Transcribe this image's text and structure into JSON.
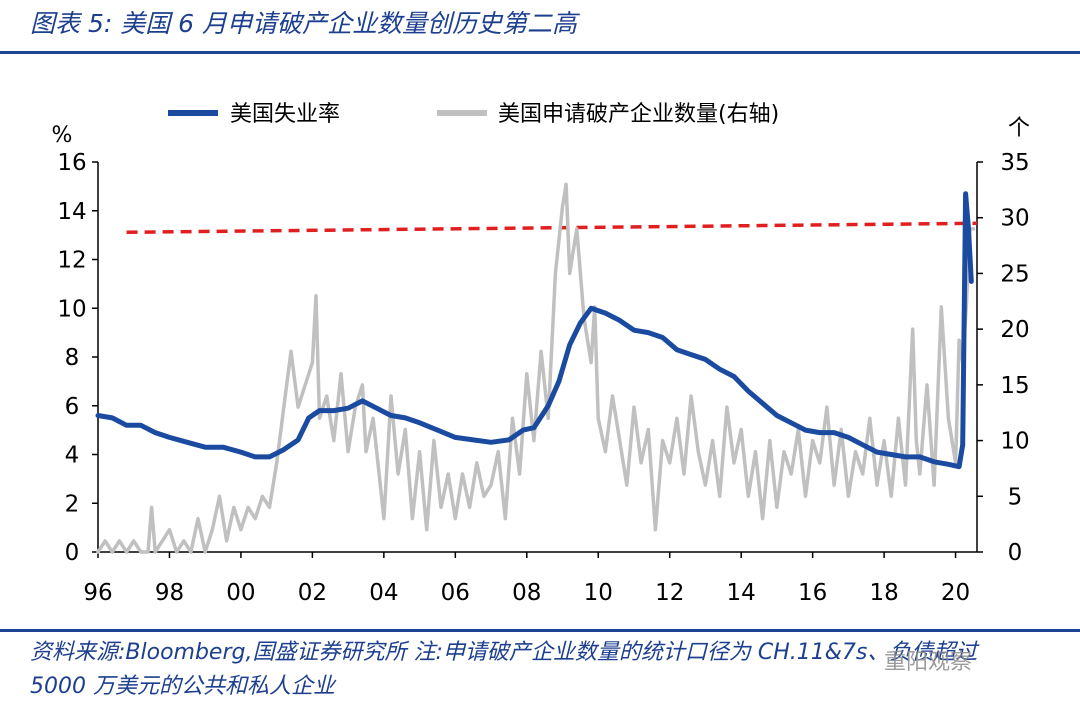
{
  "header": {
    "title": "图表 5:  美国 6 月申请破产企业数量创历史第二高"
  },
  "footer": {
    "source": "资料来源:Bloomberg,国盛证券研究所   注:申请破产企业数量的统计口径为 CH.11&7s、负债超过 5000 万美元的公共和私人企业",
    "watermark": "重阳观察"
  },
  "chart_data": {
    "type": "line",
    "left_unit": "%",
    "right_unit": "个",
    "left_ylim": [
      0,
      16
    ],
    "right_ylim": [
      0,
      35
    ],
    "left_ticks": [
      "0",
      "2",
      "4",
      "6",
      "8",
      "10",
      "12",
      "14",
      "16"
    ],
    "right_ticks": [
      "0",
      "5",
      "10",
      "15",
      "20",
      "25",
      "30",
      "35"
    ],
    "x_ticks": [
      "96",
      "98",
      "00",
      "02",
      "04",
      "06",
      "08",
      "10",
      "12",
      "14",
      "16",
      "18",
      "20"
    ],
    "x_range": [
      1996.0,
      2020.6
    ],
    "reference_line": {
      "axis": "right",
      "value": 29.5,
      "color": "#e02020"
    },
    "legend_position": "top",
    "series": [
      {
        "name": "美国失业率",
        "axis": "left",
        "color": "#1a4ba0",
        "points": [
          [
            1996.0,
            5.6
          ],
          [
            1996.4,
            5.5
          ],
          [
            1996.8,
            5.2
          ],
          [
            1997.2,
            5.2
          ],
          [
            1997.6,
            4.9
          ],
          [
            1998.0,
            4.7
          ],
          [
            1998.5,
            4.5
          ],
          [
            1999.0,
            4.3
          ],
          [
            1999.5,
            4.3
          ],
          [
            2000.0,
            4.1
          ],
          [
            2000.4,
            3.9
          ],
          [
            2000.8,
            3.9
          ],
          [
            2001.2,
            4.2
          ],
          [
            2001.6,
            4.6
          ],
          [
            2001.9,
            5.5
          ],
          [
            2002.2,
            5.8
          ],
          [
            2002.6,
            5.8
          ],
          [
            2003.0,
            5.9
          ],
          [
            2003.4,
            6.2
          ],
          [
            2003.8,
            5.9
          ],
          [
            2004.2,
            5.6
          ],
          [
            2004.6,
            5.5
          ],
          [
            2005.0,
            5.3
          ],
          [
            2005.5,
            5.0
          ],
          [
            2006.0,
            4.7
          ],
          [
            2006.5,
            4.6
          ],
          [
            2007.0,
            4.5
          ],
          [
            2007.5,
            4.6
          ],
          [
            2007.9,
            5.0
          ],
          [
            2008.2,
            5.1
          ],
          [
            2008.6,
            6.0
          ],
          [
            2008.9,
            7.0
          ],
          [
            2009.2,
            8.5
          ],
          [
            2009.5,
            9.4
          ],
          [
            2009.8,
            10.0
          ],
          [
            2010.2,
            9.8
          ],
          [
            2010.6,
            9.5
          ],
          [
            2011.0,
            9.1
          ],
          [
            2011.4,
            9.0
          ],
          [
            2011.8,
            8.8
          ],
          [
            2012.2,
            8.3
          ],
          [
            2012.6,
            8.1
          ],
          [
            2013.0,
            7.9
          ],
          [
            2013.4,
            7.5
          ],
          [
            2013.8,
            7.2
          ],
          [
            2014.2,
            6.6
          ],
          [
            2014.6,
            6.1
          ],
          [
            2015.0,
            5.6
          ],
          [
            2015.4,
            5.3
          ],
          [
            2015.8,
            5.0
          ],
          [
            2016.2,
            4.9
          ],
          [
            2016.6,
            4.9
          ],
          [
            2017.0,
            4.7
          ],
          [
            2017.4,
            4.4
          ],
          [
            2017.8,
            4.1
          ],
          [
            2018.2,
            4.0
          ],
          [
            2018.6,
            3.9
          ],
          [
            2019.0,
            3.9
          ],
          [
            2019.4,
            3.7
          ],
          [
            2019.8,
            3.6
          ],
          [
            2020.1,
            3.5
          ],
          [
            2020.2,
            4.4
          ],
          [
            2020.28,
            14.7
          ],
          [
            2020.36,
            13.3
          ],
          [
            2020.44,
            11.1
          ]
        ]
      },
      {
        "name": "美国申请破产企业数量(右轴)",
        "axis": "right",
        "color": "#c0c0c0",
        "points": [
          [
            1996.0,
            0
          ],
          [
            1996.2,
            1
          ],
          [
            1996.4,
            0
          ],
          [
            1996.6,
            1
          ],
          [
            1996.8,
            0
          ],
          [
            1997.0,
            1
          ],
          [
            1997.2,
            0
          ],
          [
            1997.4,
            0
          ],
          [
            1997.5,
            4
          ],
          [
            1997.6,
            0
          ],
          [
            1997.8,
            1
          ],
          [
            1998.0,
            2
          ],
          [
            1998.2,
            0
          ],
          [
            1998.4,
            1
          ],
          [
            1998.6,
            0
          ],
          [
            1998.8,
            3
          ],
          [
            1999.0,
            0
          ],
          [
            1999.2,
            2
          ],
          [
            1999.4,
            5
          ],
          [
            1999.6,
            1
          ],
          [
            1999.8,
            4
          ],
          [
            2000.0,
            2
          ],
          [
            2000.2,
            4
          ],
          [
            2000.4,
            3
          ],
          [
            2000.6,
            5
          ],
          [
            2000.8,
            4
          ],
          [
            2001.0,
            8
          ],
          [
            2001.2,
            13
          ],
          [
            2001.4,
            18
          ],
          [
            2001.6,
            13
          ],
          [
            2001.8,
            15
          ],
          [
            2002.0,
            17
          ],
          [
            2002.1,
            23
          ],
          [
            2002.2,
            12
          ],
          [
            2002.4,
            14
          ],
          [
            2002.6,
            10
          ],
          [
            2002.8,
            16
          ],
          [
            2003.0,
            9
          ],
          [
            2003.2,
            13
          ],
          [
            2003.4,
            15
          ],
          [
            2003.5,
            9
          ],
          [
            2003.7,
            12
          ],
          [
            2003.9,
            6
          ],
          [
            2004.0,
            3
          ],
          [
            2004.2,
            14
          ],
          [
            2004.4,
            7
          ],
          [
            2004.6,
            11
          ],
          [
            2004.8,
            3
          ],
          [
            2005.0,
            9
          ],
          [
            2005.2,
            2
          ],
          [
            2005.4,
            10
          ],
          [
            2005.6,
            4
          ],
          [
            2005.8,
            7
          ],
          [
            2006.0,
            3
          ],
          [
            2006.2,
            7
          ],
          [
            2006.4,
            4
          ],
          [
            2006.6,
            8
          ],
          [
            2006.8,
            5
          ],
          [
            2007.0,
            6
          ],
          [
            2007.2,
            9
          ],
          [
            2007.4,
            3
          ],
          [
            2007.6,
            12
          ],
          [
            2007.8,
            7
          ],
          [
            2008.0,
            16
          ],
          [
            2008.2,
            10
          ],
          [
            2008.4,
            18
          ],
          [
            2008.6,
            12
          ],
          [
            2008.8,
            25
          ],
          [
            2009.0,
            31
          ],
          [
            2009.1,
            33
          ],
          [
            2009.2,
            25
          ],
          [
            2009.4,
            29
          ],
          [
            2009.6,
            21
          ],
          [
            2009.8,
            17
          ],
          [
            2009.9,
            22
          ],
          [
            2010.0,
            12
          ],
          [
            2010.2,
            9
          ],
          [
            2010.4,
            14
          ],
          [
            2010.6,
            10
          ],
          [
            2010.8,
            6
          ],
          [
            2011.0,
            13
          ],
          [
            2011.2,
            8
          ],
          [
            2011.4,
            11
          ],
          [
            2011.6,
            2
          ],
          [
            2011.8,
            10
          ],
          [
            2012.0,
            8
          ],
          [
            2012.2,
            12
          ],
          [
            2012.4,
            7
          ],
          [
            2012.6,
            14
          ],
          [
            2012.8,
            9
          ],
          [
            2013.0,
            6
          ],
          [
            2013.2,
            10
          ],
          [
            2013.4,
            5
          ],
          [
            2013.6,
            13
          ],
          [
            2013.8,
            8
          ],
          [
            2014.0,
            11
          ],
          [
            2014.2,
            5
          ],
          [
            2014.4,
            9
          ],
          [
            2014.6,
            3
          ],
          [
            2014.8,
            10
          ],
          [
            2015.0,
            4
          ],
          [
            2015.2,
            9
          ],
          [
            2015.4,
            7
          ],
          [
            2015.6,
            11
          ],
          [
            2015.8,
            5
          ],
          [
            2016.0,
            10
          ],
          [
            2016.2,
            8
          ],
          [
            2016.4,
            13
          ],
          [
            2016.6,
            6
          ],
          [
            2016.8,
            11
          ],
          [
            2017.0,
            5
          ],
          [
            2017.2,
            9
          ],
          [
            2017.4,
            7
          ],
          [
            2017.6,
            12
          ],
          [
            2017.8,
            6
          ],
          [
            2018.0,
            10
          ],
          [
            2018.2,
            5
          ],
          [
            2018.4,
            12
          ],
          [
            2018.6,
            6
          ],
          [
            2018.8,
            20
          ],
          [
            2018.9,
            10
          ],
          [
            2019.0,
            7
          ],
          [
            2019.2,
            15
          ],
          [
            2019.4,
            6
          ],
          [
            2019.6,
            22
          ],
          [
            2019.8,
            12
          ],
          [
            2019.9,
            10
          ],
          [
            2020.0,
            8
          ],
          [
            2020.1,
            19
          ],
          [
            2020.2,
            17
          ],
          [
            2020.3,
            22
          ],
          [
            2020.4,
            29
          ],
          [
            2020.5,
            29
          ]
        ]
      }
    ]
  }
}
